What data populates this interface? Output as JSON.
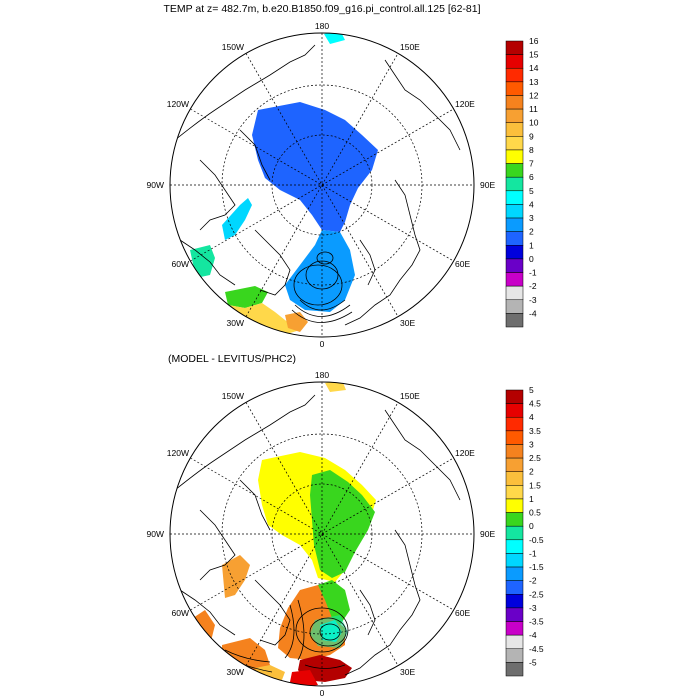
{
  "chart_data": [
    {
      "type": "polar-map",
      "title": "TEMP at z= 482.7m, b.e20.B1850.f09_g16.pi_control.all.125 [62-81]",
      "projection": "north polar stereographic",
      "lon_labels": {
        "top": "180",
        "bottom": "0",
        "left": "90W",
        "right": "90E",
        "upper_left": "120W",
        "upper_left_high": "150W",
        "upper_right": "120E",
        "upper_right_high": "150E",
        "lower_left": "60W",
        "lower_left_low": "30W",
        "lower_right": "60E",
        "lower_right_low": "30E"
      },
      "colorbar": {
        "levels": [
          "16",
          "15",
          "14",
          "13",
          "12",
          "11",
          "10",
          "9",
          "8",
          "7",
          "6",
          "5",
          "4",
          "3",
          "2",
          "1",
          "0",
          "-1",
          "-2",
          "-3",
          "-4"
        ],
        "colors": [
          "#b40000",
          "#e60000",
          "#ff2a00",
          "#ff5a00",
          "#f5821e",
          "#f7a032",
          "#fbbf3c",
          "#ffd84a",
          "#ffff00",
          "#39d61e",
          "#14e6a0",
          "#00ffff",
          "#00d7ff",
          "#0a9bff",
          "#1e64ff",
          "#0000dc",
          "#6a00c8",
          "#c800c8",
          "#e6e6e6",
          "#b4b4b4",
          "#6e6e6e"
        ]
      }
    },
    {
      "type": "polar-map",
      "title": "(MODEL - LEVITUS/PHC2)",
      "projection": "north polar stereographic",
      "lon_labels": {
        "top": "180",
        "bottom": "0",
        "left": "90W",
        "right": "90E",
        "upper_left": "120W",
        "upper_left_high": "150W",
        "upper_right": "120E",
        "upper_right_high": "150E",
        "lower_left": "60W",
        "lower_left_low": "30W",
        "lower_right": "60E",
        "lower_right_low": "30E"
      },
      "colorbar": {
        "levels": [
          "5",
          "4.5",
          "4",
          "3.5",
          "3",
          "2.5",
          "2",
          "1.5",
          "1",
          "0.5",
          "0",
          "-0.5",
          "-1",
          "-1.5",
          "-2",
          "-2.5",
          "-3",
          "-3.5",
          "-4",
          "-4.5",
          "-5"
        ],
        "colors": [
          "#b40000",
          "#e60000",
          "#ff2a00",
          "#ff5a00",
          "#f5821e",
          "#f7a032",
          "#fbbf3c",
          "#ffd84a",
          "#ffff00",
          "#39d61e",
          "#14e6a0",
          "#00ffff",
          "#00d7ff",
          "#0a9bff",
          "#1e64ff",
          "#0000dc",
          "#6a00c8",
          "#c800c8",
          "#e6e6e6",
          "#b4b4b4",
          "#6e6e6e"
        ]
      }
    }
  ]
}
